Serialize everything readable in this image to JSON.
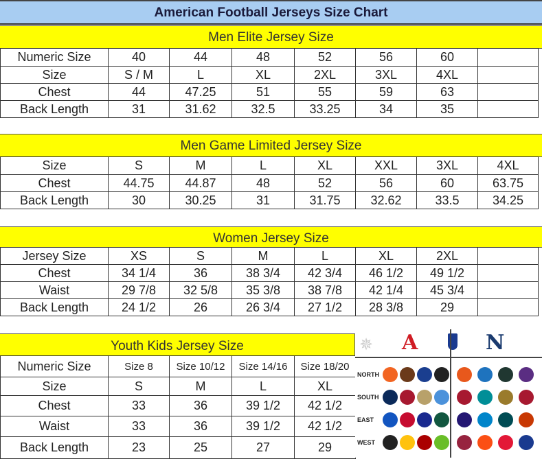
{
  "title": "American Football Jerseys Size Chart",
  "men_elite": {
    "heading": "Men Elite Jersey Size",
    "rows": [
      [
        "Numeric Size",
        "40",
        "44",
        "48",
        "52",
        "56",
        "60",
        ""
      ],
      [
        "Size",
        "S / M",
        "L",
        "XL",
        "2XL",
        "3XL",
        "4XL",
        ""
      ],
      [
        "Chest",
        "44",
        "47.25",
        "51",
        "55",
        "59",
        "63",
        ""
      ],
      [
        "Back Length",
        "31",
        "31.62",
        "32.5",
        "33.25",
        "34",
        "35",
        ""
      ]
    ]
  },
  "men_game": {
    "heading": "Men Game Limited Jersey Size",
    "rows": [
      [
        "Size",
        "S",
        "M",
        "L",
        "XL",
        "XXL",
        "3XL",
        "4XL"
      ],
      [
        "Chest",
        "44.75",
        "44.87",
        "48",
        "52",
        "56",
        "60",
        "63.75"
      ],
      [
        "Back Length",
        "30",
        "30.25",
        "31",
        "31.75",
        "32.62",
        "33.5",
        "34.25"
      ]
    ]
  },
  "women": {
    "heading": "Women Jersey Size",
    "rows": [
      [
        "Jersey Size",
        "XS",
        "S",
        "M",
        "L",
        "XL",
        "2XL",
        ""
      ],
      [
        "Chest",
        "34 1/4",
        "36",
        "38 3/4",
        "42 3/4",
        "46 1/2",
        "49 1/2",
        ""
      ],
      [
        "Waist",
        "29 7/8",
        "32 5/8",
        "35 3/8",
        "38 7/8",
        "42 1/4",
        "45 3/4",
        ""
      ],
      [
        "Back Length",
        "24 1/2",
        "26",
        "26 3/4",
        "27 1/2",
        "28 3/8",
        "29",
        ""
      ]
    ]
  },
  "youth": {
    "heading": "Youth Kids Jersey Size",
    "rows": [
      [
        "Numeric Size",
        "Size 8",
        "Size 10/12",
        "Size 14/16",
        "Size 18/20"
      ],
      [
        "Size",
        "S",
        "M",
        "L",
        "XL"
      ],
      [
        "Chest",
        "33",
        "36",
        "39 1/2",
        "42 1/2"
      ],
      [
        "Waist",
        "33",
        "36",
        "39 1/2",
        "42 1/2"
      ],
      [
        "Back Length",
        "23",
        "25",
        "27",
        "29"
      ]
    ]
  },
  "logos": {
    "afc": "A",
    "nfc": "N",
    "afc_color": "#d01c24",
    "nfc_color": "#1a3a6e",
    "divisions": [
      "NORTH",
      "SOUTH",
      "EAST",
      "WEST"
    ],
    "afc_teams": [
      [
        "#f26522",
        "#6b3a1a",
        "#1a3e8f",
        "#222"
      ],
      [
        "#0b2a5a",
        "#a71930",
        "#b8a16a",
        "#4b92db"
      ],
      [
        "#1255c0",
        "#c60c30",
        "#1a2a8f",
        "#125740"
      ],
      [
        "#222",
        "#ffc20e",
        "#aa0000",
        "#69be28"
      ]
    ],
    "nfc_teams": [
      [
        "#e8581c",
        "#1e73be",
        "#203731",
        "#5a2d82"
      ],
      [
        "#a71930",
        "#008e97",
        "#9a7b2c",
        "#a71930"
      ],
      [
        "#241773",
        "#0085ca",
        "#004c54",
        "#c83803"
      ],
      [
        "#97233f",
        "#fb4f14",
        "#e31837",
        "#1a3a8f"
      ]
    ]
  }
}
